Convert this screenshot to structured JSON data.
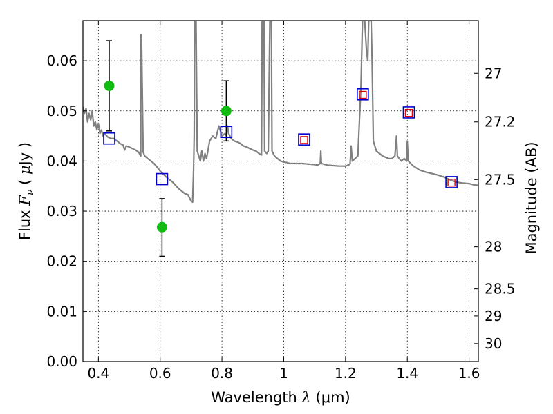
{
  "chart_data": {
    "type": "scatter",
    "xlabel": "Wavelength  λ (μm)",
    "xlabel_parts": {
      "text": "Wavelength",
      "symbol": "λ",
      "unit": "μm"
    },
    "ylabel": "Flux  Fν ( μJy )",
    "ylabel_parts": {
      "text": "Flux",
      "symbol": "F",
      "subscript": "ν",
      "unit_mu": "μ",
      "unit": "Jy"
    },
    "y2label": "Magnitude (AB)",
    "xlim": [
      0.35,
      1.63
    ],
    "ylim": [
      0.0,
      0.068
    ],
    "x_ticks": [
      0.4,
      0.6,
      0.8,
      1.0,
      1.2,
      1.4,
      1.6
    ],
    "x_tick_labels": [
      "0.4",
      "0.6",
      "0.8",
      "1",
      "1.2",
      "1.4",
      "1.6"
    ],
    "y_ticks": [
      0.0,
      0.01,
      0.02,
      0.03,
      0.04,
      0.05,
      0.06
    ],
    "y_tick_labels": [
      "0.00",
      "0.01",
      "0.02",
      "0.03",
      "0.04",
      "0.05",
      "0.06"
    ],
    "mag_ticks": [
      {
        "label": "27",
        "flux": 0.0575
      },
      {
        "label": "27.2",
        "flux": 0.0478
      },
      {
        "label": "27.5",
        "flux": 0.0363
      },
      {
        "label": "28",
        "flux": 0.0229
      },
      {
        "label": "28.5",
        "flux": 0.0145
      },
      {
        "label": "29",
        "flux": 0.0091
      },
      {
        "label": "30",
        "flux": 0.0036
      }
    ],
    "grid": true,
    "series": [
      {
        "kind": "line",
        "color": "#808080",
        "points": [
          [
            0.35,
            0.0508
          ],
          [
            0.355,
            0.0495
          ],
          [
            0.36,
            0.0505
          ],
          [
            0.365,
            0.0478
          ],
          [
            0.37,
            0.0495
          ],
          [
            0.375,
            0.0482
          ],
          [
            0.38,
            0.05
          ],
          [
            0.385,
            0.047
          ],
          [
            0.39,
            0.0478
          ],
          [
            0.395,
            0.0462
          ],
          [
            0.4,
            0.0475
          ],
          [
            0.405,
            0.0455
          ],
          [
            0.41,
            0.0462
          ],
          [
            0.415,
            0.045
          ],
          [
            0.42,
            0.0455
          ],
          [
            0.43,
            0.0448
          ],
          [
            0.44,
            0.0445
          ],
          [
            0.45,
            0.0445
          ],
          [
            0.46,
            0.044
          ],
          [
            0.47,
            0.0435
          ],
          [
            0.48,
            0.0432
          ],
          [
            0.485,
            0.0422
          ],
          [
            0.49,
            0.043
          ],
          [
            0.5,
            0.0428
          ],
          [
            0.51,
            0.0425
          ],
          [
            0.52,
            0.0422
          ],
          [
            0.53,
            0.0418
          ],
          [
            0.537,
            0.041
          ],
          [
            0.538,
            0.0652
          ],
          [
            0.54,
            0.063
          ],
          [
            0.545,
            0.0418
          ],
          [
            0.55,
            0.041
          ],
          [
            0.56,
            0.0405
          ],
          [
            0.57,
            0.04
          ],
          [
            0.58,
            0.0395
          ],
          [
            0.59,
            0.0388
          ],
          [
            0.6,
            0.038
          ],
          [
            0.62,
            0.0368
          ],
          [
            0.64,
            0.0358
          ],
          [
            0.66,
            0.0345
          ],
          [
            0.68,
            0.0335
          ],
          [
            0.69,
            0.0333
          ],
          [
            0.7,
            0.032
          ],
          [
            0.705,
            0.0318
          ],
          [
            0.708,
            0.038
          ],
          [
            0.71,
            0.045
          ],
          [
            0.712,
            0.068
          ],
          [
            0.716,
            0.068
          ],
          [
            0.72,
            0.042
          ],
          [
            0.725,
            0.041
          ],
          [
            0.73,
            0.04
          ],
          [
            0.735,
            0.042
          ],
          [
            0.74,
            0.04
          ],
          [
            0.745,
            0.0415
          ],
          [
            0.75,
            0.0405
          ],
          [
            0.76,
            0.044
          ],
          [
            0.77,
            0.045
          ],
          [
            0.78,
            0.0445
          ],
          [
            0.79,
            0.047
          ],
          [
            0.795,
            0.046
          ],
          [
            0.8,
            0.045
          ],
          [
            0.81,
            0.0455
          ],
          [
            0.815,
            0.045
          ],
          [
            0.818,
            0.047
          ],
          [
            0.822,
            0.0455
          ],
          [
            0.83,
            0.0445
          ],
          [
            0.84,
            0.044
          ],
          [
            0.85,
            0.0438
          ],
          [
            0.86,
            0.0435
          ],
          [
            0.87,
            0.043
          ],
          [
            0.88,
            0.0428
          ],
          [
            0.89,
            0.0425
          ],
          [
            0.9,
            0.0422
          ],
          [
            0.91,
            0.042
          ],
          [
            0.92,
            0.0415
          ],
          [
            0.928,
            0.0412
          ],
          [
            0.93,
            0.068
          ],
          [
            0.936,
            0.068
          ],
          [
            0.938,
            0.042
          ],
          [
            0.945,
            0.0415
          ],
          [
            0.95,
            0.042
          ],
          [
            0.955,
            0.068
          ],
          [
            0.96,
            0.068
          ],
          [
            0.962,
            0.042
          ],
          [
            0.97,
            0.041
          ],
          [
            0.98,
            0.0405
          ],
          [
            0.99,
            0.04
          ],
          [
            1.0,
            0.0398
          ],
          [
            1.01,
            0.0397
          ],
          [
            1.02,
            0.0395
          ],
          [
            1.04,
            0.0395
          ],
          [
            1.06,
            0.0395
          ],
          [
            1.08,
            0.0394
          ],
          [
            1.1,
            0.0393
          ],
          [
            1.11,
            0.0392
          ],
          [
            1.118,
            0.0395
          ],
          [
            1.12,
            0.042
          ],
          [
            1.122,
            0.0395
          ],
          [
            1.14,
            0.0392
          ],
          [
            1.16,
            0.0391
          ],
          [
            1.18,
            0.039
          ],
          [
            1.2,
            0.039
          ],
          [
            1.21,
            0.0392
          ],
          [
            1.215,
            0.0395
          ],
          [
            1.218,
            0.043
          ],
          [
            1.222,
            0.04
          ],
          [
            1.24,
            0.041
          ],
          [
            1.25,
            0.055
          ],
          [
            1.255,
            0.068
          ],
          [
            1.262,
            0.068
          ],
          [
            1.268,
            0.062
          ],
          [
            1.272,
            0.06
          ],
          [
            1.275,
            0.068
          ],
          [
            1.283,
            0.068
          ],
          [
            1.286,
            0.06
          ],
          [
            1.29,
            0.044
          ],
          [
            1.3,
            0.042
          ],
          [
            1.32,
            0.041
          ],
          [
            1.34,
            0.0405
          ],
          [
            1.35,
            0.0405
          ],
          [
            1.36,
            0.041
          ],
          [
            1.365,
            0.045
          ],
          [
            1.368,
            0.041
          ],
          [
            1.38,
            0.04
          ],
          [
            1.39,
            0.0405
          ],
          [
            1.398,
            0.04
          ],
          [
            1.4,
            0.044
          ],
          [
            1.403,
            0.04
          ],
          [
            1.42,
            0.039
          ],
          [
            1.44,
            0.0382
          ],
          [
            1.46,
            0.0378
          ],
          [
            1.48,
            0.0375
          ],
          [
            1.5,
            0.0372
          ],
          [
            1.52,
            0.0368
          ],
          [
            1.54,
            0.0362
          ],
          [
            1.56,
            0.0358
          ],
          [
            1.58,
            0.0356
          ],
          [
            1.6,
            0.0355
          ],
          [
            1.62,
            0.0352
          ],
          [
            1.63,
            0.0352
          ]
        ]
      },
      {
        "kind": "errorbar",
        "color": "#11bb11",
        "points": [
          {
            "x": 0.435,
            "y": 0.055,
            "lo": 0.046,
            "hi": 0.064
          },
          {
            "x": 0.606,
            "y": 0.0268,
            "lo": 0.021,
            "hi": 0.0325
          },
          {
            "x": 0.814,
            "y": 0.05,
            "lo": 0.044,
            "hi": 0.056
          }
        ]
      },
      {
        "kind": "square-blue",
        "color": "#0000cc",
        "points": [
          [
            0.435,
            0.0445
          ],
          [
            0.606,
            0.0364
          ],
          [
            0.814,
            0.0458
          ],
          [
            1.066,
            0.0443
          ],
          [
            1.256,
            0.0533
          ],
          [
            1.405,
            0.0497
          ],
          [
            1.543,
            0.0358
          ]
        ]
      },
      {
        "kind": "square-red",
        "color": "#dd0000",
        "points": [
          [
            1.066,
            0.0442
          ],
          [
            1.256,
            0.0532
          ],
          [
            1.405,
            0.0496
          ],
          [
            1.543,
            0.0357
          ]
        ]
      }
    ]
  }
}
